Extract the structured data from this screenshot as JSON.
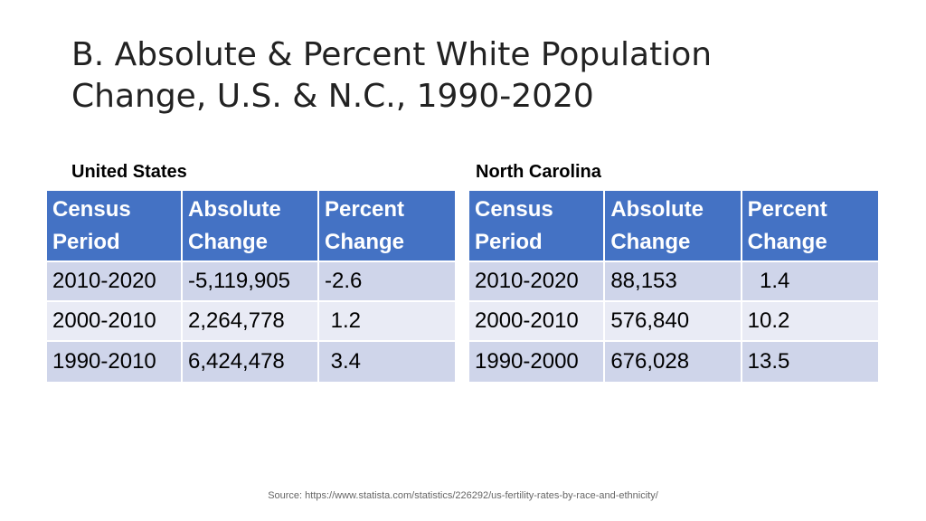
{
  "slide": {
    "title": "B. Absolute & Percent White Population\nChange, U.S. & N.C., 1990-2020",
    "source": "Source: https://www.statista.com/statistics/226292/us-fertility-rates-by-race-and-ethnicity/"
  },
  "us": {
    "label": "United States",
    "headers": [
      "Census\nPeriod",
      "Absolute\nChange",
      "Percent\nChange"
    ],
    "rows": [
      [
        "2010-2020",
        "-5,119,905",
        "-2.6"
      ],
      [
        "2000-2010",
        "2,264,778",
        " 1.2"
      ],
      [
        "1990-2010",
        "6,424,478",
        " 3.4"
      ]
    ]
  },
  "nc": {
    "label": "North Carolina",
    "headers": [
      "Census\nPeriod",
      "Absolute\nChange",
      "Percent\nChange"
    ],
    "rows": [
      [
        "2010-2020",
        "88,153",
        "  1.4"
      ],
      [
        "2000-2010",
        "576,840",
        "10.2"
      ],
      [
        "1990-2000",
        "676,028",
        "13.5"
      ]
    ]
  },
  "colors": {
    "header_bg": "#4472c4",
    "row_dark": "#cfd5ea",
    "row_light": "#e9ebf5"
  }
}
